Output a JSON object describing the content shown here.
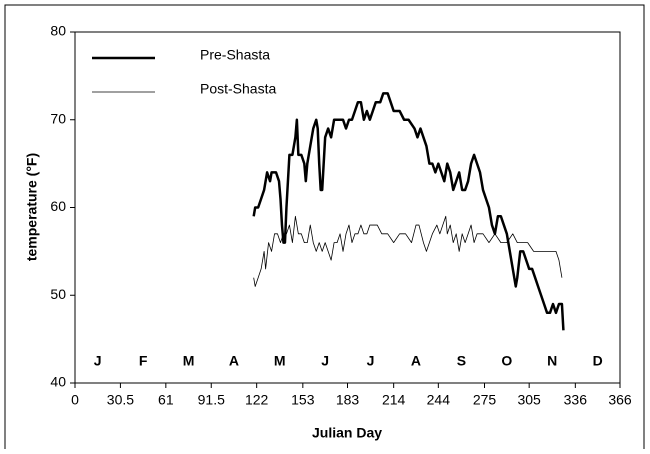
{
  "chart_data": {
    "type": "line",
    "x_label": "Julian Day",
    "y_label": "temperature (°F)",
    "xlim": [
      0,
      366
    ],
    "xticks": [
      0,
      30.5,
      61,
      91.5,
      122,
      153,
      183,
      214,
      244,
      275,
      305,
      336,
      366
    ],
    "ylim": [
      40,
      80
    ],
    "yticks": [
      40,
      50,
      60,
      70,
      80
    ],
    "months": [
      "J",
      "F",
      "M",
      "A",
      "M",
      "J",
      "J",
      "A",
      "S",
      "O",
      "N",
      "D"
    ],
    "legend": "upper left",
    "series": [
      {
        "name": "Pre-Shasta",
        "color": "#000000",
        "width": 2.5,
        "x": [
          120,
          121,
          123,
          125,
          127,
          128,
          129,
          131,
          132,
          135,
          137,
          138,
          139,
          140,
          141,
          142,
          144,
          146,
          148,
          149,
          150,
          152,
          154,
          155,
          156,
          158,
          160,
          162,
          163,
          164,
          165,
          166,
          168,
          170,
          172,
          174,
          177,
          180,
          182,
          184,
          186,
          188,
          190,
          192,
          194,
          196,
          198,
          200,
          202,
          205,
          207,
          210,
          212,
          214,
          218,
          221,
          224,
          228,
          230,
          232,
          234,
          236,
          238,
          240,
          242,
          244,
          246,
          248,
          250,
          252,
          254,
          256,
          258,
          260,
          262,
          264,
          266,
          268,
          270,
          272,
          274,
          276,
          278,
          280,
          282,
          284,
          286,
          288,
          290,
          292,
          294,
          296,
          297,
          299,
          301,
          303,
          305,
          307,
          309,
          311,
          313,
          315,
          317,
          319,
          321,
          323,
          325,
          327,
          328
        ],
        "values": [
          59,
          60,
          60,
          61,
          62,
          63,
          64,
          63,
          64,
          64,
          63,
          61,
          58,
          56,
          56,
          60,
          66,
          66,
          68,
          70,
          66,
          66,
          65,
          63,
          65,
          67,
          69,
          70,
          69,
          65,
          62,
          62,
          68,
          69,
          68,
          70,
          70,
          70,
          69,
          70,
          70,
          71,
          72,
          72,
          70,
          71,
          70,
          71,
          72,
          72,
          73,
          73,
          72,
          71,
          71,
          70,
          70,
          69,
          68,
          69,
          68,
          67,
          65,
          65,
          64,
          65,
          64,
          63,
          65,
          64,
          62,
          63,
          64,
          62,
          62,
          63,
          65,
          66,
          65,
          64,
          62,
          61,
          60,
          58,
          57,
          59,
          59,
          58,
          57,
          55,
          53,
          51,
          52,
          55,
          55,
          54,
          53,
          53,
          52,
          51,
          50,
          49,
          48,
          48,
          49,
          48,
          49,
          49,
          46
        ]
      },
      {
        "name": "Post-Shasta",
        "color": "#000000",
        "width": 0.8,
        "x": [
          120,
          121,
          123,
          125,
          127,
          128,
          130,
          132,
          134,
          136,
          138,
          140,
          142,
          144,
          146,
          148,
          150,
          152,
          154,
          156,
          158,
          160,
          162,
          164,
          166,
          168,
          170,
          172,
          174,
          176,
          178,
          180,
          182,
          184,
          186,
          188,
          190,
          192,
          194,
          196,
          198,
          200,
          203,
          206,
          210,
          214,
          218,
          222,
          226,
          229,
          231,
          234,
          236,
          238,
          240,
          243,
          245,
          247,
          249,
          250,
          252,
          254,
          256,
          258,
          260,
          262,
          264,
          266,
          268,
          270,
          274,
          278,
          282,
          286,
          290,
          294,
          297,
          300,
          304,
          308,
          312,
          316,
          320,
          323,
          325,
          327
        ],
        "values": [
          52,
          51,
          52,
          53,
          55,
          53,
          56,
          55,
          57,
          57,
          56,
          57,
          57,
          58,
          56,
          59,
          57,
          57,
          56,
          56,
          58,
          56,
          55,
          56,
          55,
          56,
          55,
          54,
          56,
          56,
          57,
          55,
          57,
          58,
          56,
          57,
          57,
          58,
          57,
          57,
          58,
          58,
          58,
          57,
          57,
          56,
          57,
          57,
          56,
          58,
          58,
          56,
          55,
          56,
          57,
          58,
          57,
          58,
          59,
          57,
          58,
          56,
          57,
          55,
          57,
          56,
          57,
          58,
          56,
          57,
          57,
          56,
          57,
          56,
          56,
          57,
          56,
          56,
          56,
          55,
          55,
          55,
          55,
          55,
          54,
          52
        ]
      }
    ]
  }
}
